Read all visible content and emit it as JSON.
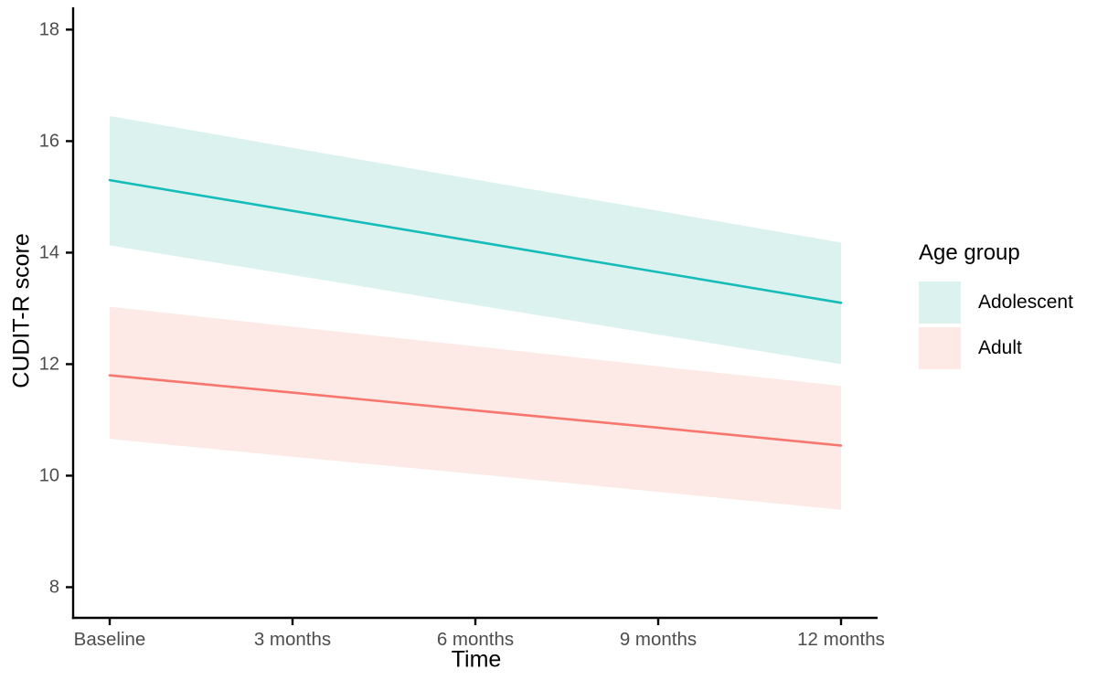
{
  "page": {
    "background_color": "#FFFFFF"
  },
  "chart_data": {
    "type": "line",
    "title": "",
    "xlabel": "Time",
    "ylabel": "CUDIT-R score",
    "categories": [
      "Baseline",
      "3 months",
      "6 months",
      "9 months",
      "12 months"
    ],
    "y_ticks": [
      8,
      10,
      12,
      14,
      16,
      18
    ],
    "ylim": [
      7.45,
      18.4
    ],
    "grid": false,
    "axis_color": "#000000",
    "tick_label_color": "#4D4D4D",
    "legend": {
      "title": "Age group",
      "position": "right"
    },
    "series": [
      {
        "name": "Adolescent",
        "line_color": "#16BCB8",
        "band_color": "#DCF2EF",
        "values": [
          15.3,
          14.75,
          14.2,
          13.65,
          13.1
        ],
        "ci_upper": [
          16.45,
          15.88,
          15.31,
          14.75,
          14.18
        ],
        "ci_lower": [
          14.13,
          13.6,
          13.06,
          12.53,
          12.0
        ]
      },
      {
        "name": "Adult",
        "line_color": "#F8766D",
        "band_color": "#FDE9E5",
        "values": [
          11.8,
          11.49,
          11.17,
          10.86,
          10.54
        ],
        "ci_upper": [
          13.03,
          12.67,
          12.32,
          11.96,
          11.61
        ],
        "ci_lower": [
          10.66,
          10.34,
          10.03,
          9.71,
          9.39
        ]
      }
    ]
  }
}
